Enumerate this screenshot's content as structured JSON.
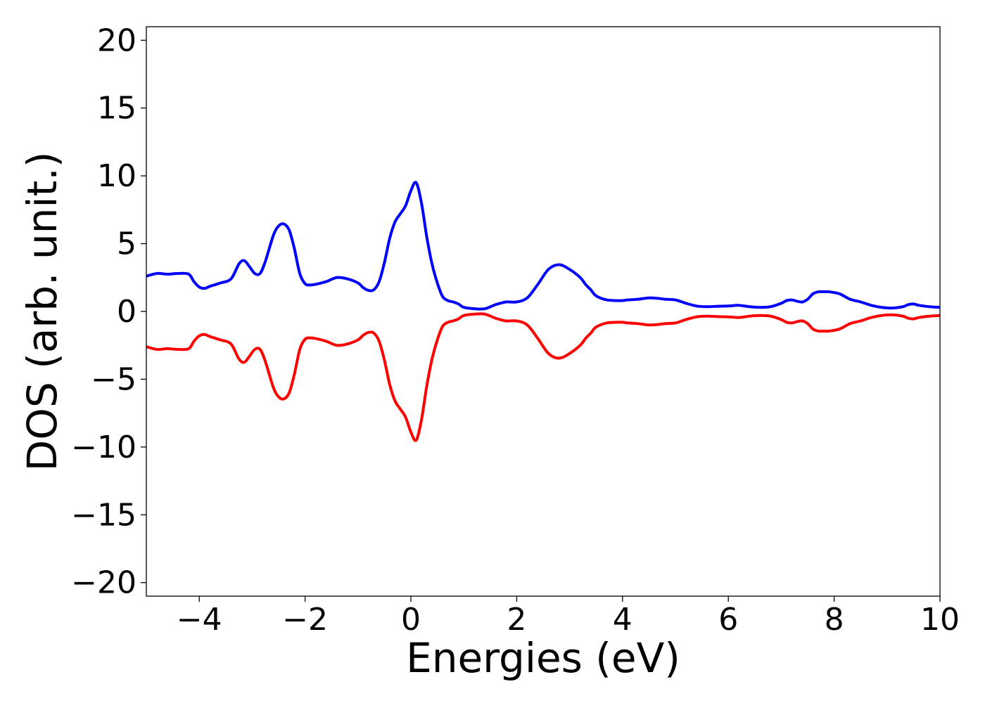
{
  "chart_data": {
    "type": "line",
    "title": "",
    "xlabel": "Energies (eV)",
    "ylabel": "DOS (arb. unit.)",
    "xlim": [
      -5,
      10
    ],
    "ylim": [
      -21,
      21
    ],
    "xticks": [
      -4,
      -2,
      0,
      2,
      4,
      6,
      8,
      10
    ],
    "yticks": [
      20,
      15,
      10,
      5,
      0,
      -5,
      -10,
      -15,
      -20
    ],
    "xtick_labels": [
      "−4",
      "−2",
      "0",
      "2",
      "4",
      "6",
      "8",
      "10"
    ],
    "ytick_labels": [
      "20",
      "15",
      "10",
      "5",
      "0",
      "−5",
      "−10",
      "−15",
      "−20"
    ],
    "grid": false,
    "legend": false,
    "series": [
      {
        "color": "#0000ff",
        "x": [
          -5.0,
          -4.8,
          -4.6,
          -4.4,
          -4.2,
          -4.1,
          -4.0,
          -3.9,
          -3.8,
          -3.6,
          -3.4,
          -3.25,
          -3.15,
          -3.05,
          -2.95,
          -2.85,
          -2.75,
          -2.6,
          -2.5,
          -2.4,
          -2.3,
          -2.2,
          -2.1,
          -2.0,
          -1.9,
          -1.8,
          -1.6,
          -1.4,
          -1.2,
          -1.0,
          -0.9,
          -0.8,
          -0.7,
          -0.6,
          -0.5,
          -0.4,
          -0.3,
          -0.2,
          -0.1,
          0.0,
          0.1,
          0.2,
          0.3,
          0.4,
          0.5,
          0.6,
          0.7,
          0.8,
          0.9,
          1.0,
          1.2,
          1.4,
          1.6,
          1.8,
          2.0,
          2.2,
          2.4,
          2.6,
          2.8,
          3.0,
          3.2,
          3.3,
          3.4,
          3.5,
          3.7,
          3.9,
          4.0,
          4.1,
          4.3,
          4.5,
          4.7,
          4.8,
          5.0,
          5.2,
          5.4,
          5.6,
          5.8,
          6.0,
          6.2,
          6.4,
          6.6,
          6.8,
          7.0,
          7.1,
          7.2,
          7.3,
          7.4,
          7.5,
          7.6,
          7.7,
          7.8,
          7.9,
          8.1,
          8.3,
          8.5,
          8.7,
          8.9,
          9.1,
          9.3,
          9.4,
          9.5,
          9.6,
          9.8,
          10.0
        ],
        "y": [
          2.6,
          2.8,
          2.75,
          2.8,
          2.75,
          2.2,
          1.8,
          1.7,
          1.85,
          2.1,
          2.4,
          3.5,
          3.75,
          3.3,
          2.8,
          2.8,
          3.7,
          5.6,
          6.3,
          6.45,
          6.0,
          4.6,
          2.8,
          2.05,
          1.95,
          2.0,
          2.2,
          2.5,
          2.4,
          2.1,
          1.75,
          1.55,
          1.6,
          2.2,
          3.6,
          5.4,
          6.6,
          7.2,
          7.8,
          8.9,
          9.5,
          8.0,
          5.5,
          3.5,
          2.1,
          1.1,
          0.8,
          0.7,
          0.55,
          0.3,
          0.2,
          0.2,
          0.5,
          0.7,
          0.7,
          1.0,
          2.0,
          3.1,
          3.45,
          3.1,
          2.5,
          2.0,
          1.6,
          1.15,
          0.85,
          0.8,
          0.8,
          0.85,
          0.9,
          1.0,
          0.95,
          0.9,
          0.85,
          0.6,
          0.4,
          0.35,
          0.38,
          0.4,
          0.45,
          0.35,
          0.3,
          0.35,
          0.6,
          0.8,
          0.85,
          0.75,
          0.7,
          0.9,
          1.3,
          1.45,
          1.45,
          1.45,
          1.3,
          0.9,
          0.7,
          0.45,
          0.3,
          0.25,
          0.35,
          0.5,
          0.55,
          0.45,
          0.35,
          0.3
        ]
      },
      {
        "color": "#ff0000",
        "x": [
          -5.0,
          -4.8,
          -4.6,
          -4.4,
          -4.2,
          -4.1,
          -4.0,
          -3.9,
          -3.8,
          -3.6,
          -3.4,
          -3.25,
          -3.15,
          -3.05,
          -2.95,
          -2.85,
          -2.75,
          -2.6,
          -2.5,
          -2.4,
          -2.3,
          -2.2,
          -2.1,
          -2.0,
          -1.9,
          -1.8,
          -1.6,
          -1.4,
          -1.2,
          -1.0,
          -0.9,
          -0.8,
          -0.7,
          -0.6,
          -0.5,
          -0.4,
          -0.3,
          -0.2,
          -0.1,
          0.0,
          0.1,
          0.2,
          0.3,
          0.4,
          0.5,
          0.6,
          0.7,
          0.8,
          0.9,
          1.0,
          1.2,
          1.4,
          1.6,
          1.8,
          2.0,
          2.2,
          2.4,
          2.6,
          2.8,
          3.0,
          3.2,
          3.3,
          3.4,
          3.5,
          3.7,
          3.9,
          4.0,
          4.1,
          4.3,
          4.5,
          4.7,
          4.8,
          5.0,
          5.2,
          5.4,
          5.6,
          5.8,
          6.0,
          6.2,
          6.4,
          6.6,
          6.8,
          7.0,
          7.1,
          7.2,
          7.3,
          7.4,
          7.5,
          7.6,
          7.7,
          7.8,
          7.9,
          8.1,
          8.3,
          8.5,
          8.7,
          8.9,
          9.1,
          9.3,
          9.4,
          9.5,
          9.6,
          9.8,
          10.0
        ],
        "y": [
          -2.6,
          -2.8,
          -2.75,
          -2.8,
          -2.75,
          -2.2,
          -1.8,
          -1.7,
          -1.85,
          -2.1,
          -2.4,
          -3.5,
          -3.75,
          -3.3,
          -2.8,
          -2.8,
          -3.7,
          -5.6,
          -6.3,
          -6.45,
          -6.0,
          -4.6,
          -2.8,
          -2.05,
          -1.95,
          -2.0,
          -2.2,
          -2.5,
          -2.4,
          -2.1,
          -1.75,
          -1.55,
          -1.6,
          -2.2,
          -3.6,
          -5.4,
          -6.6,
          -7.2,
          -7.8,
          -8.9,
          -9.5,
          -8.0,
          -5.5,
          -3.5,
          -2.1,
          -1.1,
          -0.8,
          -0.7,
          -0.55,
          -0.3,
          -0.2,
          -0.2,
          -0.5,
          -0.7,
          -0.7,
          -1.0,
          -2.0,
          -3.1,
          -3.45,
          -3.1,
          -2.5,
          -2.0,
          -1.6,
          -1.15,
          -0.85,
          -0.8,
          -0.8,
          -0.85,
          -0.9,
          -1.0,
          -0.95,
          -0.9,
          -0.85,
          -0.6,
          -0.4,
          -0.35,
          -0.38,
          -0.4,
          -0.45,
          -0.35,
          -0.3,
          -0.35,
          -0.6,
          -0.8,
          -0.85,
          -0.75,
          -0.7,
          -0.9,
          -1.3,
          -1.45,
          -1.45,
          -1.45,
          -1.3,
          -0.9,
          -0.7,
          -0.45,
          -0.3,
          -0.25,
          -0.35,
          -0.5,
          -0.55,
          -0.45,
          -0.35,
          -0.3
        ]
      }
    ]
  }
}
